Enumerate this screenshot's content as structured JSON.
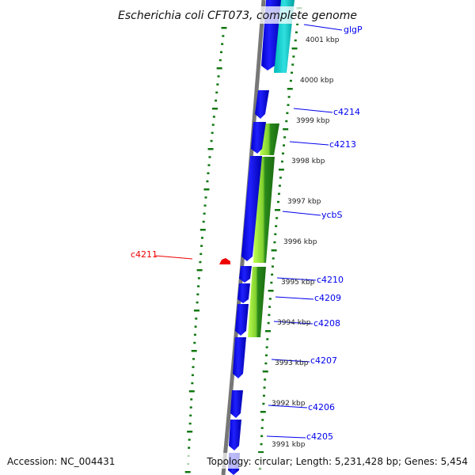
{
  "title": "Escherichia coli CFT073, complete genome",
  "footer": {
    "accession": "Accession: NC_004431",
    "summary": "Topology: circular; Length: 5,231,428 bp; Genes: 5,454"
  },
  "ticks": [
    "4001 kbp",
    "4000 kbp",
    "3999 kbp",
    "3998 kbp",
    "3997 kbp",
    "3996 kbp",
    "3995 kbp",
    "3994 kbp",
    "3993 kbp",
    "3992 kbp",
    "3991 kbp"
  ],
  "genes": [
    "glgP",
    "c4214",
    "c4213",
    "ycbS",
    "c4210",
    "c4209",
    "c4208",
    "c4207",
    "c4206",
    "c4205"
  ],
  "reverse_gene": "c4211",
  "colors": {
    "forward": "#0000ee",
    "cds": "#1010ff",
    "cyan": "#20d0d0",
    "green": "#2a8a1a",
    "lime": "#b0f040",
    "marker": "#ee0000",
    "ticks": "#117711"
  }
}
